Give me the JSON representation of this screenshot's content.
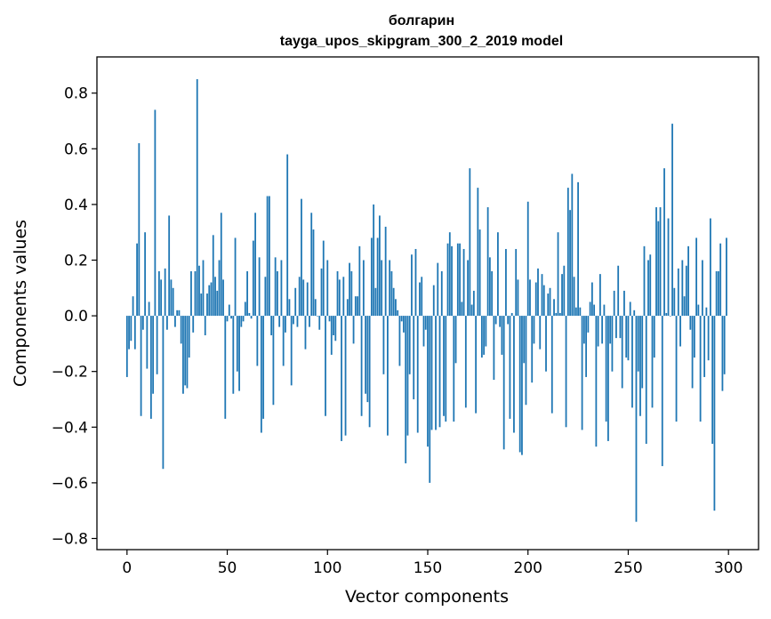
{
  "chart_data": {
    "type": "bar",
    "title": "болгарин",
    "subtitle": "tayga_upos_skipgram_300_2_2019 model",
    "xlabel": "Vector components",
    "ylabel": "Components values",
    "xlim": [
      -15,
      315
    ],
    "ylim": [
      -0.84,
      0.93
    ],
    "xticks": [
      0,
      50,
      100,
      150,
      200,
      250,
      300
    ],
    "xtick_labels": [
      "0",
      "50",
      "100",
      "150",
      "200",
      "250",
      "300"
    ],
    "yticks": [
      -0.8,
      -0.6,
      -0.4,
      -0.2,
      0.0,
      0.2,
      0.4,
      0.6,
      0.8
    ],
    "ytick_labels": [
      "−0.8",
      "−0.6",
      "−0.4",
      "−0.2",
      "0.0",
      "0.2",
      "0.4",
      "0.6",
      "0.8"
    ],
    "grid": false,
    "bar_color": "#1f77b4",
    "x": "0..299",
    "values": [
      -0.22,
      -0.12,
      -0.09,
      0.07,
      -0.12,
      0.26,
      0.62,
      -0.36,
      -0.05,
      0.3,
      -0.19,
      0.05,
      -0.37,
      -0.28,
      0.74,
      -0.21,
      0.16,
      0.13,
      -0.55,
      0.17,
      -0.05,
      0.36,
      0.13,
      0.1,
      -0.04,
      0.02,
      0.02,
      -0.1,
      -0.28,
      -0.25,
      -0.26,
      -0.15,
      0.16,
      -0.06,
      0.16,
      0.85,
      0.18,
      0.08,
      0.2,
      -0.07,
      0.08,
      0.11,
      0.12,
      0.29,
      0.14,
      0.09,
      0.2,
      0.37,
      0.13,
      -0.37,
      -0.02,
      0.04,
      -0.01,
      -0.28,
      0.28,
      -0.2,
      -0.27,
      -0.04,
      -0.02,
      0.05,
      0.16,
      0.01,
      -0.01,
      0.27,
      0.37,
      -0.18,
      0.21,
      -0.42,
      -0.37,
      0.14,
      0.43,
      0.43,
      -0.07,
      -0.32,
      0.21,
      0.16,
      -0.04,
      0.2,
      -0.18,
      -0.06,
      0.58,
      0.06,
      -0.25,
      -0.03,
      0.1,
      -0.04,
      0.14,
      0.42,
      0.13,
      -0.12,
      0.12,
      -0.04,
      0.37,
      0.31,
      0.06,
      0.0,
      -0.05,
      0.17,
      0.27,
      -0.36,
      0.2,
      -0.02,
      -0.14,
      -0.07,
      -0.09,
      0.16,
      0.13,
      -0.45,
      0.14,
      -0.43,
      0.06,
      0.19,
      0.16,
      -0.1,
      0.07,
      0.07,
      0.25,
      -0.36,
      0.2,
      -0.28,
      -0.31,
      -0.4,
      0.28,
      0.4,
      0.1,
      0.28,
      0.36,
      0.2,
      -0.21,
      0.32,
      -0.43,
      0.2,
      0.16,
      0.1,
      0.06,
      0.02,
      -0.18,
      -0.02,
      -0.06,
      -0.53,
      -0.43,
      -0.21,
      0.22,
      -0.3,
      0.24,
      -0.42,
      0.12,
      0.14,
      -0.11,
      -0.05,
      -0.47,
      -0.6,
      -0.41,
      0.11,
      -0.41,
      0.19,
      -0.4,
      0.16,
      -0.36,
      -0.38,
      0.26,
      0.3,
      0.25,
      -0.38,
      -0.17,
      0.26,
      0.26,
      0.05,
      0.24,
      -0.33,
      0.2,
      0.53,
      0.04,
      0.09,
      -0.35,
      0.46,
      0.31,
      -0.15,
      -0.14,
      -0.11,
      0.39,
      0.21,
      0.16,
      -0.23,
      -0.03,
      0.3,
      -0.04,
      -0.14,
      -0.48,
      0.24,
      -0.03,
      -0.37,
      0.01,
      -0.42,
      0.24,
      0.13,
      -0.49,
      -0.5,
      -0.17,
      -0.32,
      0.41,
      0.13,
      -0.24,
      -0.1,
      0.12,
      0.17,
      -0.12,
      0.15,
      0.11,
      -0.2,
      0.08,
      0.1,
      -0.35,
      0.06,
      0.01,
      0.3,
      0.01,
      0.15,
      0.18,
      -0.4,
      0.46,
      0.38,
      0.51,
      0.14,
      0.03,
      0.48,
      0.03,
      -0.41,
      -0.1,
      -0.22,
      -0.06,
      0.05,
      0.12,
      0.04,
      -0.47,
      -0.11,
      0.15,
      -0.1,
      0.04,
      -0.38,
      -0.45,
      -0.1,
      -0.2,
      0.09,
      -0.08,
      0.18,
      -0.08,
      -0.26,
      0.09,
      -0.15,
      -0.16,
      0.05,
      -0.33,
      0.02,
      -0.74,
      -0.2,
      -0.36,
      -0.26,
      0.25,
      -0.46,
      0.2,
      0.22,
      -0.33,
      -0.15,
      0.39,
      0.34,
      0.39,
      -0.54,
      0.53,
      0.01,
      0.35,
      0.0,
      0.69,
      0.1,
      -0.38,
      0.17,
      -0.11,
      0.2,
      0.07,
      0.18,
      0.25,
      -0.05,
      -0.26,
      -0.15,
      0.28,
      0.04,
      -0.38,
      0.2,
      -0.22,
      0.03,
      -0.16,
      0.35,
      -0.46,
      -0.7,
      0.16,
      0.16,
      0.26,
      -0.27,
      -0.21,
      0.28
    ]
  }
}
